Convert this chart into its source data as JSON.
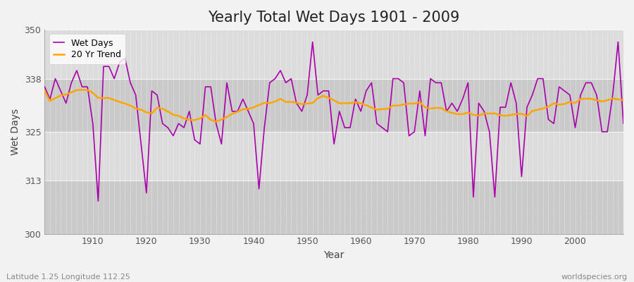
{
  "title": "Yearly Total Wet Days 1901 - 2009",
  "xlabel": "Year",
  "ylabel": "Wet Days",
  "subtitle": "Latitude 1.25 Longitude 112.25",
  "watermark": "worldspecies.org",
  "ylim": [
    300,
    350
  ],
  "yticks": [
    300,
    313,
    325,
    338,
    350
  ],
  "line_color": "#AA00AA",
  "trend_color": "#FFA500",
  "bg_color": "#F2F2F2",
  "plot_bg_light": "#DCDCDC",
  "plot_bg_dark": "#CACACA",
  "years": [
    1901,
    1902,
    1903,
    1904,
    1905,
    1906,
    1907,
    1908,
    1909,
    1910,
    1911,
    1912,
    1913,
    1914,
    1915,
    1916,
    1917,
    1918,
    1919,
    1920,
    1921,
    1922,
    1923,
    1924,
    1925,
    1926,
    1927,
    1928,
    1929,
    1930,
    1931,
    1932,
    1933,
    1934,
    1935,
    1936,
    1937,
    1938,
    1939,
    1940,
    1941,
    1942,
    1943,
    1944,
    1945,
    1946,
    1947,
    1948,
    1949,
    1950,
    1951,
    1952,
    1953,
    1954,
    1955,
    1956,
    1957,
    1958,
    1959,
    1960,
    1961,
    1962,
    1963,
    1964,
    1965,
    1966,
    1967,
    1968,
    1969,
    1970,
    1971,
    1972,
    1973,
    1974,
    1975,
    1976,
    1977,
    1978,
    1979,
    1980,
    1981,
    1982,
    1983,
    1984,
    1985,
    1986,
    1987,
    1988,
    1989,
    1990,
    1991,
    1992,
    1993,
    1994,
    1995,
    1996,
    1997,
    1998,
    1999,
    2000,
    2001,
    2002,
    2003,
    2004,
    2005,
    2006,
    2007,
    2008,
    2009
  ],
  "wet_days": [
    336,
    333,
    338,
    335,
    332,
    337,
    340,
    336,
    336,
    327,
    308,
    341,
    341,
    338,
    342,
    343,
    337,
    334,
    322,
    310,
    335,
    334,
    327,
    326,
    324,
    327,
    326,
    330,
    323,
    322,
    336,
    336,
    327,
    322,
    337,
    330,
    330,
    333,
    330,
    327,
    311,
    326,
    337,
    338,
    340,
    337,
    338,
    332,
    330,
    334,
    347,
    334,
    335,
    335,
    322,
    330,
    326,
    326,
    333,
    330,
    335,
    337,
    327,
    326,
    325,
    338,
    338,
    337,
    324,
    325,
    335,
    324,
    338,
    337,
    337,
    330,
    332,
    330,
    333,
    337,
    309,
    332,
    330,
    325,
    309,
    331,
    331,
    337,
    332,
    314,
    331,
    334,
    338,
    338,
    328,
    327,
    336,
    335,
    334,
    326,
    334,
    337,
    337,
    334,
    325,
    325,
    334,
    347,
    327
  ]
}
